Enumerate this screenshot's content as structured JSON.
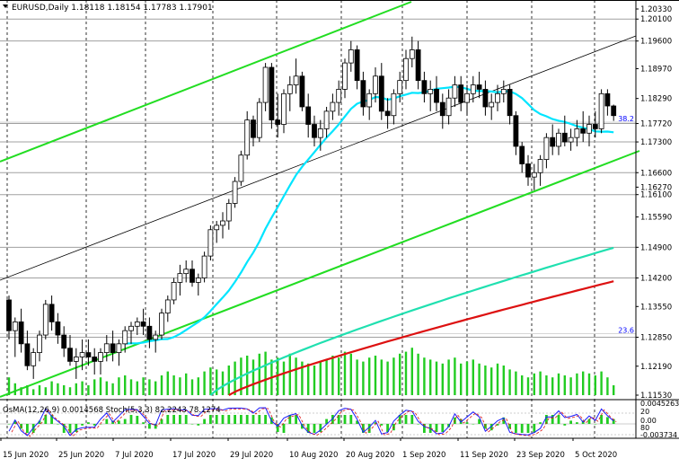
{
  "chart_data": {
    "type": "candlestick",
    "header": {
      "symbol": "EURUSD,Daily",
      "open": "1.18118",
      "high": "1.18154",
      "low": "1.17783",
      "close": "1.17901"
    },
    "indicator_header": "OsMA(12,26,9) 0.0014568  Stoch(5,3,3) 82.2243 78.1274",
    "price_axis_labels": [
      "1.20330",
      "1.20100",
      "1.19600",
      "1.18970",
      "1.18290",
      "1.17720",
      "1.17300",
      "1.16600",
      "1.16270",
      "1.16100",
      "1.15590",
      "1.14900",
      "1.14200",
      "1.13550",
      "1.12850",
      "1.12190",
      "1.11530"
    ],
    "horizontal_levels": [
      "1.20100",
      "1.19600",
      "1.17720",
      "1.17300",
      "1.16600",
      "1.16100",
      "1.14900",
      "1.14200",
      "1.12850"
    ],
    "fib_labels": [
      {
        "text": "38.2",
        "price": 1.1775
      },
      {
        "text": "23.6",
        "price": 1.1293
      }
    ],
    "indicator_axis_labels": [
      "0.0045263",
      "20",
      "0.00",
      "80",
      "-0.003734"
    ],
    "x_labels": [
      "15 Jun 2020",
      "25 Jun 2020",
      "7 Jul 2020",
      "17 Jul 2020",
      "29 Jul 2020",
      "10 Aug 2020",
      "20 Aug 2020",
      "1 Sep 2020",
      "11 Sep 2020",
      "23 Sep 2020",
      "5 Oct 2020"
    ],
    "candles_ohlc": [
      [
        1.137,
        1.138,
        1.128,
        1.13
      ],
      [
        1.13,
        1.133,
        1.124,
        1.132
      ],
      [
        1.132,
        1.135,
        1.125,
        1.127
      ],
      [
        1.127,
        1.13,
        1.121,
        1.122
      ],
      [
        1.122,
        1.126,
        1.119,
        1.125
      ],
      [
        1.125,
        1.13,
        1.123,
        1.129
      ],
      [
        1.129,
        1.137,
        1.128,
        1.136
      ],
      [
        1.136,
        1.138,
        1.13,
        1.132
      ],
      [
        1.132,
        1.134,
        1.127,
        1.129
      ],
      [
        1.129,
        1.131,
        1.124,
        1.126
      ],
      [
        1.126,
        1.129,
        1.122,
        1.123
      ],
      [
        1.123,
        1.126,
        1.119,
        1.124
      ],
      [
        1.124,
        1.128,
        1.121,
        1.125
      ],
      [
        1.125,
        1.128,
        1.122,
        1.124
      ],
      [
        1.124,
        1.126,
        1.12,
        1.123
      ],
      [
        1.123,
        1.126,
        1.12,
        1.125
      ],
      [
        1.125,
        1.129,
        1.123,
        1.127
      ],
      [
        1.127,
        1.13,
        1.123,
        1.125
      ],
      [
        1.125,
        1.128,
        1.122,
        1.127
      ],
      [
        1.127,
        1.131,
        1.125,
        1.13
      ],
      [
        1.13,
        1.132,
        1.127,
        1.131
      ],
      [
        1.131,
        1.133,
        1.129,
        1.132
      ],
      [
        1.132,
        1.135,
        1.129,
        1.131
      ],
      [
        1.131,
        1.133,
        1.126,
        1.128
      ],
      [
        1.128,
        1.13,
        1.125,
        1.129
      ],
      [
        1.129,
        1.135,
        1.128,
        1.134
      ],
      [
        1.134,
        1.138,
        1.132,
        1.137
      ],
      [
        1.137,
        1.142,
        1.136,
        1.141
      ],
      [
        1.141,
        1.145,
        1.138,
        1.143
      ],
      [
        1.143,
        1.146,
        1.141,
        1.144
      ],
      [
        1.144,
        1.146,
        1.14,
        1.141
      ],
      [
        1.141,
        1.143,
        1.138,
        1.142
      ],
      [
        1.142,
        1.148,
        1.141,
        1.147
      ],
      [
        1.147,
        1.154,
        1.146,
        1.153
      ],
      [
        1.153,
        1.155,
        1.15,
        1.154
      ],
      [
        1.154,
        1.157,
        1.151,
        1.155
      ],
      [
        1.155,
        1.16,
        1.153,
        1.159
      ],
      [
        1.159,
        1.165,
        1.158,
        1.164
      ],
      [
        1.164,
        1.171,
        1.163,
        1.17
      ],
      [
        1.17,
        1.18,
        1.169,
        1.178
      ],
      [
        1.178,
        1.179,
        1.172,
        1.174
      ],
      [
        1.174,
        1.183,
        1.173,
        1.182
      ],
      [
        1.182,
        1.191,
        1.18,
        1.19
      ],
      [
        1.19,
        1.191,
        1.176,
        1.178
      ],
      [
        1.178,
        1.184,
        1.174,
        1.177
      ],
      [
        1.177,
        1.185,
        1.175,
        1.184
      ],
      [
        1.184,
        1.188,
        1.18,
        1.186
      ],
      [
        1.186,
        1.192,
        1.184,
        1.188
      ],
      [
        1.188,
        1.189,
        1.18,
        1.181
      ],
      [
        1.181,
        1.184,
        1.174,
        1.177
      ],
      [
        1.177,
        1.179,
        1.172,
        1.174
      ],
      [
        1.174,
        1.178,
        1.171,
        1.176
      ],
      [
        1.176,
        1.181,
        1.174,
        1.18
      ],
      [
        1.18,
        1.184,
        1.178,
        1.182
      ],
      [
        1.182,
        1.187,
        1.179,
        1.185
      ],
      [
        1.185,
        1.192,
        1.183,
        1.191
      ],
      [
        1.191,
        1.196,
        1.189,
        1.194
      ],
      [
        1.194,
        1.195,
        1.185,
        1.187
      ],
      [
        1.187,
        1.189,
        1.179,
        1.181
      ],
      [
        1.181,
        1.185,
        1.178,
        1.184
      ],
      [
        1.184,
        1.19,
        1.182,
        1.188
      ],
      [
        1.188,
        1.191,
        1.178,
        1.18
      ],
      [
        1.18,
        1.183,
        1.176,
        1.179
      ],
      [
        1.179,
        1.185,
        1.177,
        1.184
      ],
      [
        1.184,
        1.189,
        1.182,
        1.187
      ],
      [
        1.187,
        1.194,
        1.185,
        1.192
      ],
      [
        1.192,
        1.197,
        1.19,
        1.194
      ],
      [
        1.194,
        1.196,
        1.185,
        1.187
      ],
      [
        1.187,
        1.189,
        1.182,
        1.184
      ],
      [
        1.184,
        1.187,
        1.18,
        1.185
      ],
      [
        1.185,
        1.188,
        1.18,
        1.182
      ],
      [
        1.182,
        1.184,
        1.176,
        1.179
      ],
      [
        1.179,
        1.185,
        1.177,
        1.183
      ],
      [
        1.183,
        1.188,
        1.181,
        1.186
      ],
      [
        1.186,
        1.188,
        1.18,
        1.182
      ],
      [
        1.182,
        1.186,
        1.179,
        1.184
      ],
      [
        1.184,
        1.188,
        1.182,
        1.186
      ],
      [
        1.186,
        1.189,
        1.183,
        1.185
      ],
      [
        1.185,
        1.187,
        1.179,
        1.181
      ],
      [
        1.181,
        1.184,
        1.178,
        1.182
      ],
      [
        1.182,
        1.186,
        1.18,
        1.184
      ],
      [
        1.184,
        1.187,
        1.182,
        1.185
      ],
      [
        1.185,
        1.186,
        1.177,
        1.179
      ],
      [
        1.179,
        1.18,
        1.17,
        1.172
      ],
      [
        1.172,
        1.173,
        1.166,
        1.168
      ],
      [
        1.168,
        1.17,
        1.163,
        1.165
      ],
      [
        1.165,
        1.168,
        1.162,
        1.166
      ],
      [
        1.166,
        1.17,
        1.163,
        1.169
      ],
      [
        1.169,
        1.175,
        1.167,
        1.174
      ],
      [
        1.174,
        1.177,
        1.17,
        1.172
      ],
      [
        1.172,
        1.176,
        1.17,
        1.175
      ],
      [
        1.175,
        1.179,
        1.172,
        1.173
      ],
      [
        1.173,
        1.176,
        1.171,
        1.174
      ],
      [
        1.174,
        1.178,
        1.172,
        1.176
      ],
      [
        1.176,
        1.18,
        1.173,
        1.175
      ],
      [
        1.175,
        1.179,
        1.172,
        1.177
      ],
      [
        1.177,
        1.18,
        1.174,
        1.176
      ],
      [
        1.176,
        1.185,
        1.175,
        1.184
      ],
      [
        1.184,
        1.185,
        1.179,
        1.1812
      ],
      [
        1.1812,
        1.1815,
        1.1778,
        1.179
      ]
    ],
    "histogram_values": [
      0.9,
      0.6,
      0.4,
      0.5,
      0.3,
      0.5,
      0.4,
      0.7,
      0.6,
      0.5,
      0.4,
      0.6,
      0.7,
      0.5,
      0.8,
      0.9,
      0.7,
      0.6,
      0.9,
      1.0,
      0.8,
      0.7,
      0.9,
      0.8,
      0.7,
      1.0,
      1.2,
      1.0,
      0.9,
      1.1,
      0.8,
      0.9,
      1.2,
      1.4,
      1.3,
      1.2,
      1.5,
      1.7,
      1.9,
      2.0,
      1.8,
      2.1,
      2.2,
      1.8,
      1.9,
      1.7,
      2.1,
      1.9,
      1.7,
      1.6,
      1.5,
      1.7,
      1.8,
      2.0,
      1.9,
      2.2,
      2.1,
      1.8,
      1.7,
      1.9,
      2.0,
      1.8,
      1.7,
      1.9,
      2.1,
      2.2,
      2.4,
      2.1,
      1.9,
      1.8,
      1.7,
      1.6,
      1.8,
      1.9,
      1.6,
      1.7,
      1.8,
      1.6,
      1.5,
      1.4,
      1.6,
      1.5,
      1.3,
      1.2,
      1.0,
      0.9,
      1.1,
      1.2,
      1.0,
      0.9,
      1.1,
      1.0,
      0.9,
      1.1,
      1.2,
      1.1,
      1.0,
      1.2,
      0.9,
      0.5
    ]
  }
}
